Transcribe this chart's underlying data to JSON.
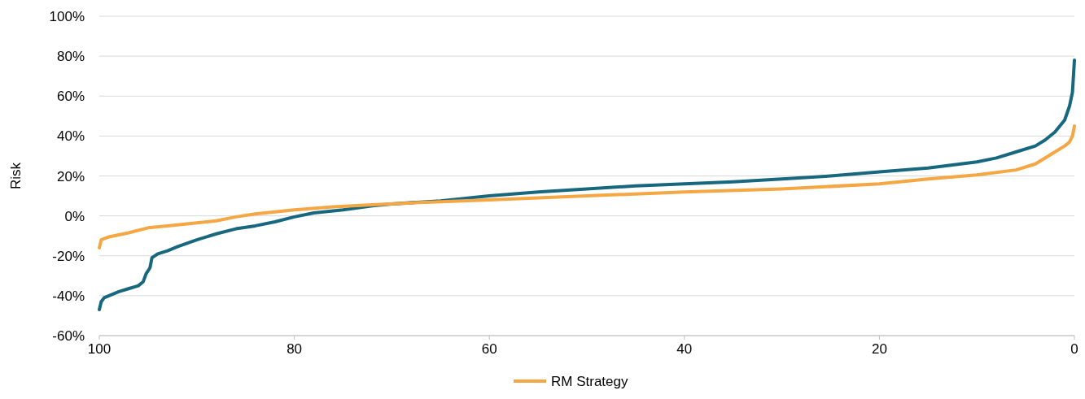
{
  "chart_data": {
    "type": "line",
    "ylabel": "Risk",
    "xlim": [
      100,
      0
    ],
    "xticks": [
      100,
      80,
      60,
      40,
      20,
      0
    ],
    "ylim": [
      -60,
      100
    ],
    "yticks": [
      {
        "value": -60,
        "label": "-60%"
      },
      {
        "value": -40,
        "label": "-40%"
      },
      {
        "value": -20,
        "label": "-20%"
      },
      {
        "value": 0,
        "label": "0%"
      },
      {
        "value": 20,
        "label": "20%"
      },
      {
        "value": 40,
        "label": "40%"
      },
      {
        "value": 60,
        "label": "60%"
      },
      {
        "value": 80,
        "label": "80%"
      },
      {
        "value": 100,
        "label": "100%"
      }
    ],
    "grid": "y",
    "legend": "bottom",
    "marker": "none",
    "line_style": "solid",
    "series": [
      {
        "color": "#17687f",
        "x": [
          100,
          99.8,
          99.5,
          99,
          98,
          97,
          96,
          95.5,
          95.2,
          94.8,
          94.6,
          94,
          93,
          92,
          90,
          88,
          86,
          84,
          82,
          80,
          78,
          75,
          72,
          70,
          65,
          60,
          55,
          50,
          45,
          40,
          35,
          30,
          25,
          20,
          15,
          10,
          8,
          6,
          4,
          3,
          2,
          1,
          0.5,
          0.2,
          0
        ],
        "values": [
          -47,
          -43,
          -41,
          -40,
          -38,
          -36.5,
          -35,
          -33,
          -29,
          -26,
          -21,
          -19,
          -17.5,
          -15.5,
          -12,
          -9,
          -6.5,
          -5,
          -3,
          -0.5,
          1.5,
          3,
          5,
          6,
          7.5,
          10,
          12,
          13.5,
          15,
          16,
          17,
          18.5,
          20,
          22,
          24,
          27,
          29,
          32,
          35,
          38,
          42,
          48,
          55,
          62,
          78
        ]
      },
      {
        "name": "RM Strategy",
        "color": "#f4a742",
        "x": [
          100,
          99.8,
          99,
          97,
          95,
          93,
          90,
          88,
          86,
          84,
          80,
          76,
          72,
          68,
          60,
          50,
          40,
          30,
          20,
          15,
          10,
          6,
          4,
          2,
          1,
          0.5,
          0.2,
          0
        ],
        "values": [
          -16,
          -12,
          -10.5,
          -8.5,
          -6,
          -5,
          -3.5,
          -2.5,
          -0.5,
          1,
          3,
          4.5,
          5.5,
          6.5,
          8,
          10,
          12,
          13.5,
          16,
          18.5,
          20.5,
          23,
          26,
          32,
          35,
          37,
          40,
          45
        ]
      }
    ]
  }
}
